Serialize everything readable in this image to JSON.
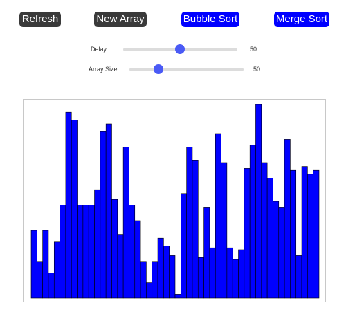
{
  "toolbar": {
    "refresh_label": "Refresh",
    "new_array_label": "New Array",
    "bubble_sort_label": "Bubble Sort",
    "merge_sort_label": "Merge Sort"
  },
  "controls": {
    "delay": {
      "label": "Delay:",
      "value": "50",
      "fraction": 0.5
    },
    "array_size": {
      "label": "Array Size:",
      "value": "50",
      "fraction": 0.25
    }
  },
  "colors": {
    "bar": "#0000ff",
    "dark_button": "#3a3a3a",
    "accent_button": "#0000ff",
    "slider_thumb": "#4a5af5"
  },
  "chart_data": {
    "type": "bar",
    "values": [
      35,
      19,
      35,
      13,
      29,
      48,
      96,
      92,
      48,
      48,
      48,
      56,
      86,
      90,
      51,
      33,
      78,
      48,
      40,
      19,
      8,
      19,
      31,
      27,
      22,
      2,
      54,
      78,
      71,
      21,
      47,
      26,
      85,
      70,
      26,
      20,
      25,
      67,
      79,
      100,
      70,
      62,
      50,
      47,
      82,
      66,
      22,
      68,
      64,
      66
    ],
    "ylim": [
      0,
      100
    ]
  }
}
